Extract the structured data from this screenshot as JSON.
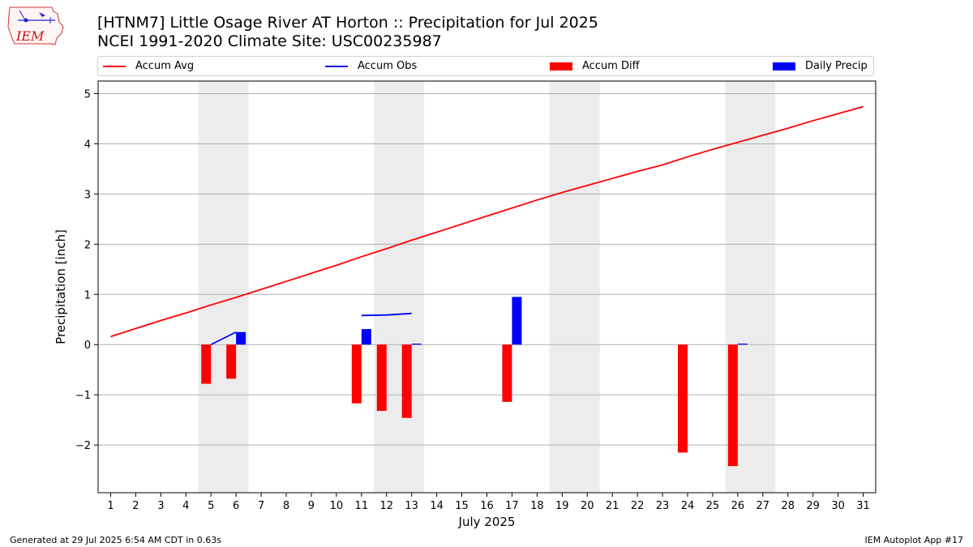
{
  "logo": {
    "text": "IEM"
  },
  "header": {
    "title": "[HTNM7] Little Osage River  AT Horton :: Precipitation for Jul 2025",
    "subtitle": "NCEI 1991-2020 Climate Site: USC00235987"
  },
  "legend": [
    {
      "label": "Accum Avg",
      "kind": "line",
      "color": "#ff0000"
    },
    {
      "label": "Accum Obs",
      "kind": "line",
      "color": "#0000ff"
    },
    {
      "label": "Accum Diff",
      "kind": "box",
      "color": "#ff0000"
    },
    {
      "label": "Daily Precip",
      "kind": "box",
      "color": "#0000ff"
    }
  ],
  "chart_data": {
    "type": "bar",
    "title": "[HTNM7] Little Osage River  AT Horton :: Precipitation for Jul 2025",
    "xlabel": "July 2025",
    "ylabel": "Precipitation [inch]",
    "xlim": [
      0.5,
      31.5
    ],
    "ylim": [
      -2.95,
      5.25
    ],
    "x_ticks": [
      1,
      2,
      3,
      4,
      5,
      6,
      7,
      8,
      9,
      10,
      11,
      12,
      13,
      14,
      15,
      16,
      17,
      18,
      19,
      20,
      21,
      22,
      23,
      24,
      25,
      26,
      27,
      28,
      29,
      30,
      31
    ],
    "y_ticks": [
      -2,
      -1,
      0,
      1,
      2,
      3,
      4,
      5
    ],
    "y_tick_labels": [
      "−2",
      "−1",
      "0",
      "1",
      "2",
      "3",
      "4",
      "5"
    ],
    "grid": "horizontal",
    "legend_position": "top",
    "weekend_shading": [
      [
        4.5,
        6.5
      ],
      [
        11.5,
        13.5
      ],
      [
        18.5,
        20.5
      ],
      [
        25.5,
        27.5
      ]
    ],
    "series": [
      {
        "name": "Accum Avg",
        "type": "line",
        "color": "#ff0000",
        "x": [
          1,
          2,
          3,
          4,
          5,
          6,
          7,
          8,
          9,
          10,
          11,
          12,
          13,
          14,
          15,
          16,
          17,
          18,
          19,
          20,
          21,
          22,
          23,
          24,
          25,
          26,
          27,
          28,
          29,
          30,
          31
        ],
        "y": [
          0.16,
          0.32,
          0.48,
          0.63,
          0.79,
          0.94,
          1.1,
          1.26,
          1.42,
          1.58,
          1.75,
          1.91,
          2.08,
          2.24,
          2.4,
          2.56,
          2.72,
          2.88,
          3.03,
          3.17,
          3.31,
          3.45,
          3.58,
          3.74,
          3.89,
          4.03,
          4.17,
          4.31,
          4.46,
          4.6,
          4.74
        ]
      },
      {
        "name": "Accum Obs",
        "type": "line",
        "color": "#0000ff",
        "segments": [
          {
            "x": [
              5,
              6
            ],
            "y": [
              0.0,
              0.25
            ]
          },
          {
            "x": [
              11,
              12,
              13
            ],
            "y": [
              0.58,
              0.59,
              0.62
            ]
          }
        ]
      },
      {
        "name": "Accum Diff",
        "type": "bar",
        "color": "#ff0000",
        "x": [
          5,
          6,
          11,
          12,
          13,
          17,
          24,
          26
        ],
        "y": [
          -0.78,
          -0.68,
          -1.17,
          -1.32,
          -1.46,
          -1.14,
          -2.15,
          -2.42
        ]
      },
      {
        "name": "Daily Precip",
        "type": "bar",
        "color": "#0000ff",
        "x": [
          6,
          11,
          13,
          17,
          26
        ],
        "y": [
          0.25,
          0.31,
          0.02,
          0.95,
          0.02
        ]
      }
    ]
  },
  "footer": {
    "left": "Generated at 29 Jul 2025 6:54 AM CDT in 0.63s",
    "right": "IEM Autoplot App #17"
  }
}
